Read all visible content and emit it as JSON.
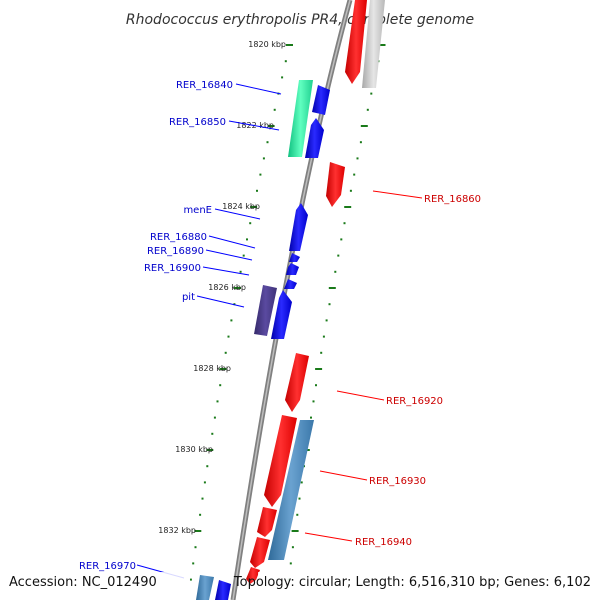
{
  "title": "Rhodococcus erythropolis PR4, complete genome",
  "accession": "Accession: NC_012490",
  "summary": "Topology: circular; Length: 6,516,310 bp; Genes: 6,102",
  "kbp_labels": [
    "1820 kbp",
    "1822 kbp",
    "1824 kbp",
    "1826 kbp",
    "1828 kbp",
    "1830 kbp",
    "1832 kbp"
  ],
  "gene_labels_left": [
    "RER_16840",
    "RER_16850",
    "menE",
    "RER_16880",
    "RER_16890",
    "RER_16900",
    "pit",
    "RER_16970"
  ],
  "gene_labels_right": [
    "RER_16860",
    "RER_16920",
    "RER_16930",
    "RER_16940"
  ],
  "colors": {
    "forward": "#0000ff",
    "reverse": "#ff0000",
    "pseudo": "#c8c8c8",
    "rna": "#22e59a",
    "other": "#4b3c8c",
    "steel": "#4682b4",
    "ruler": "#1a7a1a",
    "backbone": "#808080"
  }
}
